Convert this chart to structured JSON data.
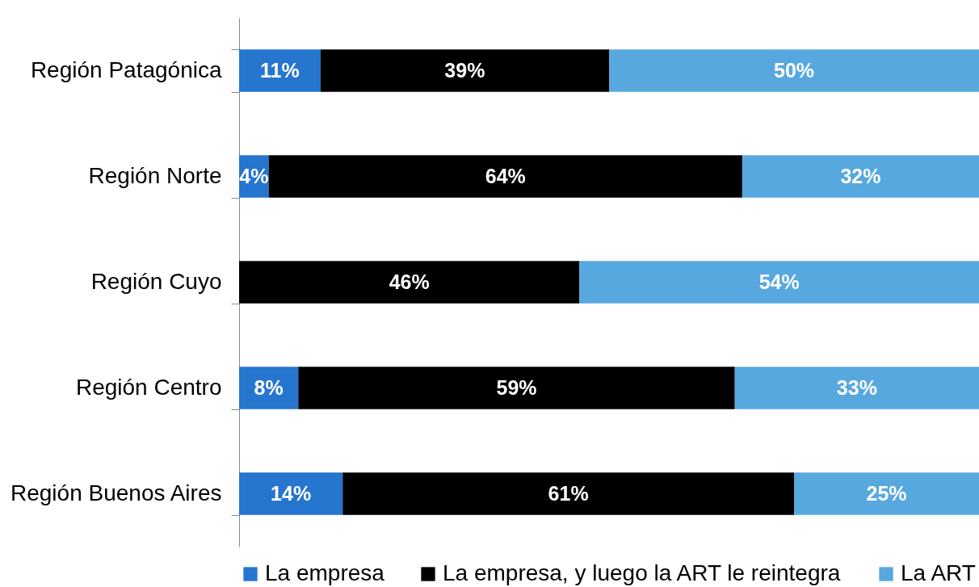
{
  "chart_data": {
    "type": "bar",
    "orientation": "horizontal",
    "stacked": true,
    "categories": [
      "Región Patagónica",
      "Región Norte",
      "Región Cuyo",
      "Región Centro",
      "Región Buenos Aires"
    ],
    "series": [
      {
        "name": "La empresa",
        "color": "#2675cf",
        "values": [
          11,
          4,
          null,
          8,
          14
        ],
        "value_labels": [
          "11%",
          "4%",
          null,
          "8%",
          "14%"
        ]
      },
      {
        "name": "La empresa, y luego la ART le reintegra",
        "color": "#000000",
        "values": [
          39,
          64,
          46,
          59,
          61
        ],
        "value_labels": [
          "39%",
          "64%",
          "46%",
          "59%",
          "61%"
        ]
      },
      {
        "name": "La ART",
        "color": "#58a8e0",
        "values": [
          50,
          32,
          54,
          33,
          25
        ],
        "value_labels": [
          "50%",
          "32%",
          "54%",
          "33%",
          "25%"
        ]
      }
    ],
    "legend": "bottom",
    "tick_labels": "y"
  }
}
